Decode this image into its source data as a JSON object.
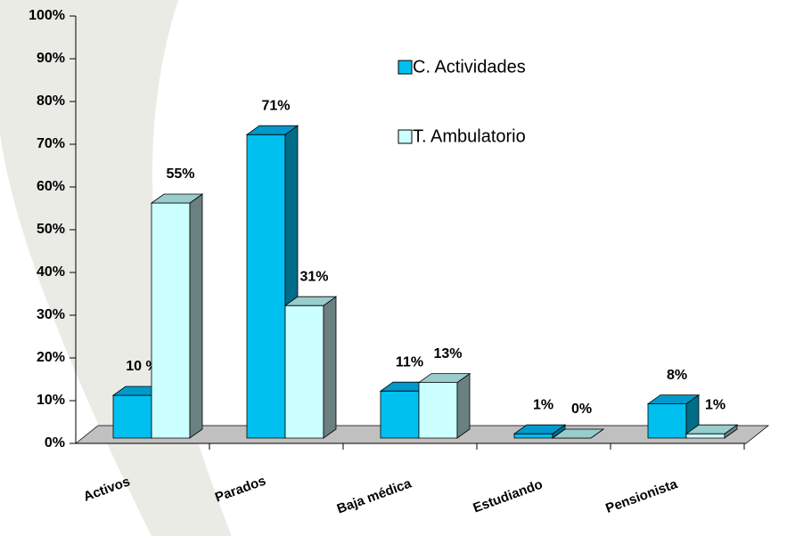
{
  "chart_data": {
    "type": "bar3d",
    "categories": [
      "Activos",
      "Parados",
      "Baja médica",
      "Estudiando",
      "Pensionista"
    ],
    "series": [
      {
        "name": "C. Actividades",
        "color": "#00c0f0",
        "values": [
          10,
          71,
          11,
          1,
          8
        ],
        "value_labels": [
          "10 %",
          "71%",
          "11%",
          "1%",
          "8%"
        ]
      },
      {
        "name": "T. Ambulatorio",
        "color": "#ccffff",
        "values": [
          55,
          31,
          13,
          0,
          1
        ],
        "value_labels": [
          "55%",
          "31%",
          "13%",
          "0%",
          "1%"
        ]
      }
    ],
    "ylim": [
      0,
      100
    ],
    "yticks": [
      {
        "value": 0,
        "label": "0%"
      },
      {
        "value": 10,
        "label": "10%"
      },
      {
        "value": 20,
        "label": "20%"
      },
      {
        "value": 30,
        "label": "30%"
      },
      {
        "value": 40,
        "label": "40%"
      },
      {
        "value": 50,
        "label": "50%"
      },
      {
        "value": 60,
        "label": "60%"
      },
      {
        "value": 70,
        "label": "70%"
      },
      {
        "value": 80,
        "label": "80%"
      },
      {
        "value": 90,
        "label": "90%"
      },
      {
        "value": 100,
        "label": "100%"
      }
    ]
  }
}
